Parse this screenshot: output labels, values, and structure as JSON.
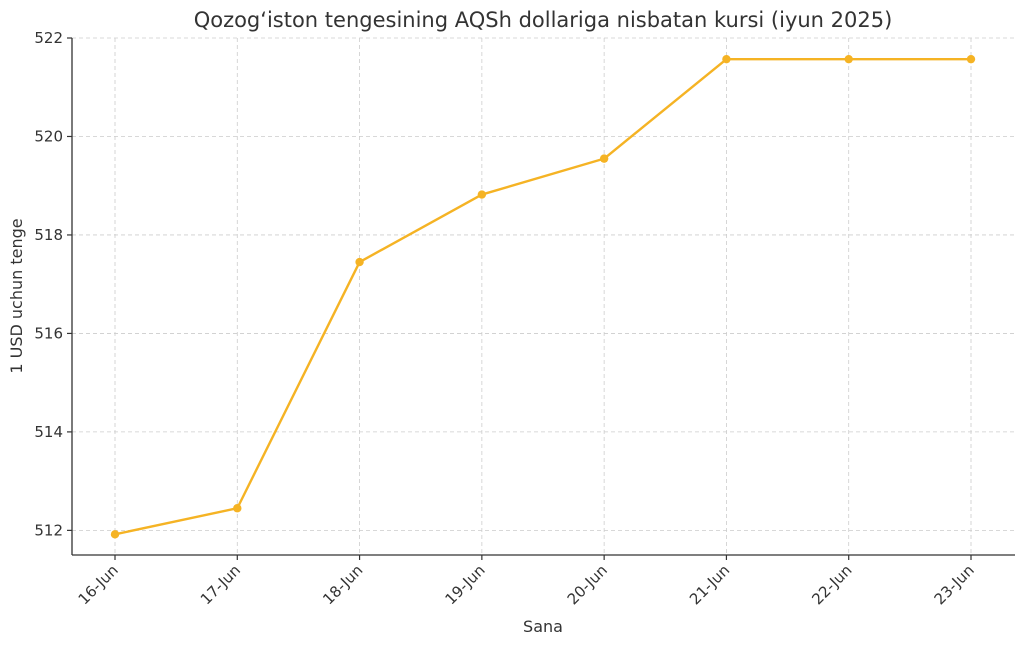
{
  "chart_data": {
    "type": "line",
    "title": "Qozog‘iston tengesining AQSh dollariga nisbatan kursi (iyun 2025)",
    "xlabel": "Sana",
    "ylabel": "1 USD uchun tenge",
    "categories": [
      "16-Jun",
      "17-Jun",
      "18-Jun",
      "19-Jun",
      "20-Jun",
      "21-Jun",
      "22-Jun",
      "23-Jun"
    ],
    "series": [
      {
        "values": [
          511.92,
          512.45,
          517.45,
          518.82,
          519.55,
          521.57,
          521.57,
          521.57
        ],
        "color": "#f5b324"
      }
    ],
    "ylim": [
      511.5,
      522
    ],
    "yticks": [
      512,
      514,
      516,
      518,
      520,
      522
    ],
    "grid": true,
    "legend": "none"
  }
}
